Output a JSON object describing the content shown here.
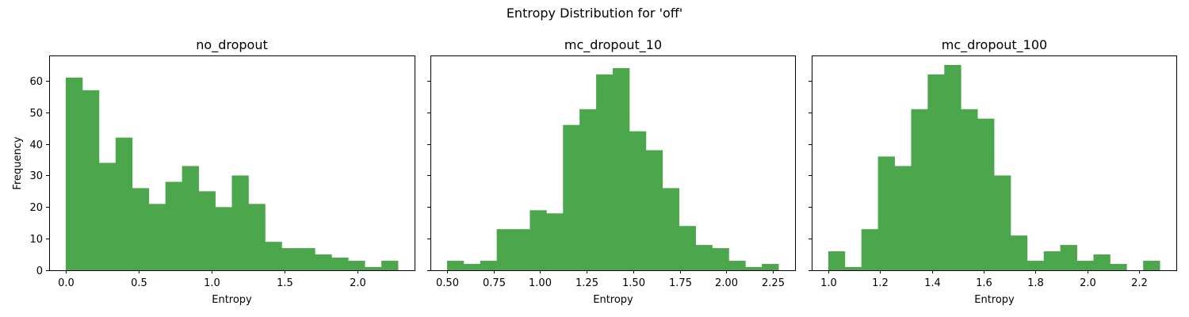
{
  "figure": {
    "suptitle": "Entropy Distribution for 'off'"
  },
  "chart_data": [
    {
      "type": "bar",
      "title": "no_dropout",
      "xlabel": "Entropy",
      "ylabel": "Frequency",
      "color": "#4ca64c",
      "xlim": [
        -0.114,
        2.394
      ],
      "ylim": [
        0,
        68
      ],
      "xticks": [
        0.0,
        0.5,
        1.0,
        1.5,
        2.0
      ],
      "xtick_labels": [
        "0.0",
        "0.5",
        "1.0",
        "1.5",
        "2.0"
      ],
      "yticks": [
        0,
        10,
        20,
        30,
        40,
        50,
        60
      ],
      "ytick_labels": [
        "0",
        "10",
        "20",
        "30",
        "40",
        "50",
        "60"
      ],
      "bin_start": 0.0,
      "bin_end": 2.28,
      "counts": [
        61,
        57,
        34,
        42,
        26,
        21,
        28,
        33,
        25,
        20,
        30,
        21,
        9,
        7,
        7,
        5,
        4,
        3,
        1,
        3
      ]
    },
    {
      "type": "bar",
      "title": "mc_dropout_10",
      "xlabel": "Entropy",
      "ylabel": "",
      "color": "#4ca64c",
      "xlim": [
        0.411,
        2.369
      ],
      "ylim": [
        0,
        68
      ],
      "xticks": [
        0.5,
        0.75,
        1.0,
        1.25,
        1.5,
        1.75,
        2.0,
        2.25
      ],
      "xtick_labels": [
        "0.50",
        "0.75",
        "1.00",
        "1.25",
        "1.50",
        "1.75",
        "2.00",
        "2.25"
      ],
      "yticks": [
        0,
        10,
        20,
        30,
        40,
        50,
        60
      ],
      "ytick_labels": [],
      "bin_start": 0.5,
      "bin_end": 2.28,
      "counts": [
        3,
        2,
        3,
        13,
        13,
        19,
        18,
        46,
        51,
        62,
        64,
        44,
        38,
        26,
        14,
        8,
        7,
        3,
        1,
        2
      ]
    },
    {
      "type": "bar",
      "title": "mc_dropout_100",
      "xlabel": "Entropy",
      "ylabel": "",
      "color": "#4ca64c",
      "xlim": [
        0.936,
        2.344
      ],
      "ylim": [
        0,
        68
      ],
      "xticks": [
        1.0,
        1.2,
        1.4,
        1.6,
        1.8,
        2.0,
        2.2
      ],
      "xtick_labels": [
        "1.0",
        "1.2",
        "1.4",
        "1.6",
        "1.8",
        "2.0",
        "2.2"
      ],
      "yticks": [
        0,
        10,
        20,
        30,
        40,
        50,
        60
      ],
      "ytick_labels": [],
      "bin_start": 1.0,
      "bin_end": 2.28,
      "counts": [
        6,
        1,
        13,
        36,
        33,
        51,
        62,
        65,
        51,
        48,
        30,
        11,
        3,
        6,
        8,
        3,
        5,
        2,
        0,
        3
      ]
    }
  ]
}
